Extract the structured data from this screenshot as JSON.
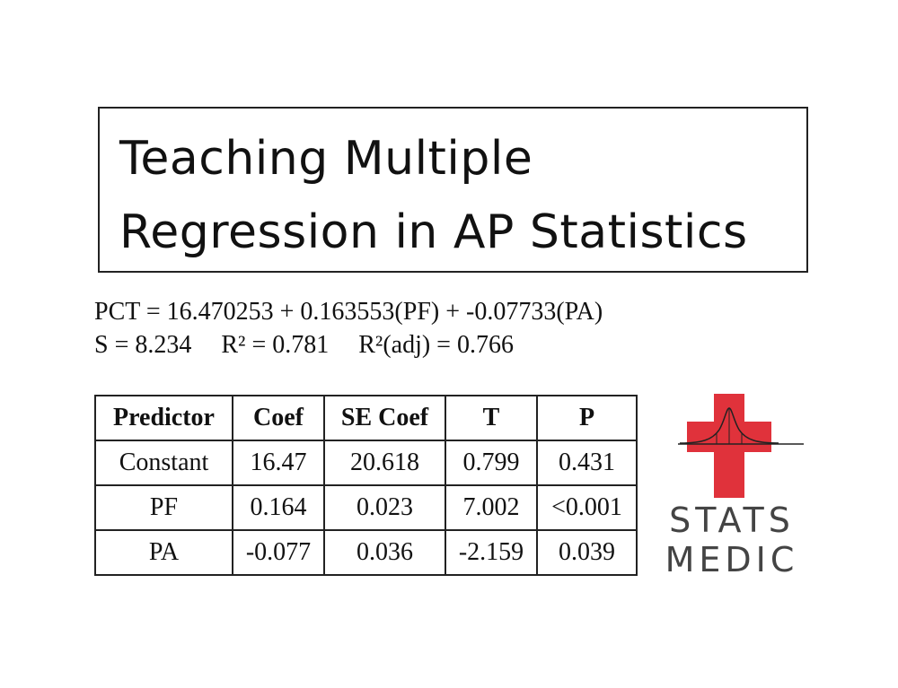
{
  "title": {
    "line1": "Teaching Multiple",
    "line2": "Regression in AP Statistics"
  },
  "equation": {
    "line1": "PCT = 16.470253 + 0.163553(PF) + -0.07733(PA)",
    "s": "S = 8.234",
    "r2": "R² = 0.781",
    "r2adj": "R²(adj) = 0.766"
  },
  "table": {
    "headers": [
      "Predictor",
      "Coef",
      "SE Coef",
      "T",
      "P"
    ],
    "rows": [
      [
        "Constant",
        "16.47",
        "20.618",
        "0.799",
        "0.431"
      ],
      [
        "PF",
        "0.164",
        "0.023",
        "7.002",
        "<0.001"
      ],
      [
        "PA",
        "-0.077",
        "0.036",
        "-2.159",
        "0.039"
      ]
    ]
  },
  "logo": {
    "word1": "STATS",
    "word2": "MEDIC",
    "cross_color": "#e0323b",
    "curve_color": "#222222",
    "text_color": "#444444",
    "icon": "cross-with-normal-curve-icon"
  }
}
